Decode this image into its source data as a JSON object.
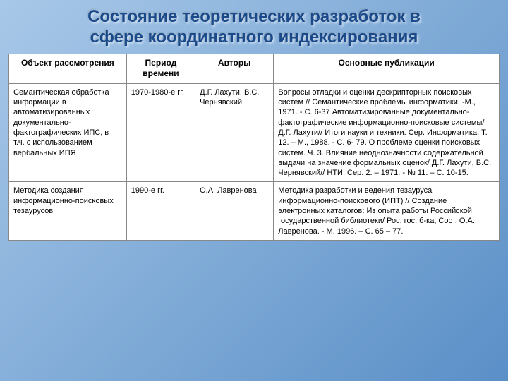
{
  "title_line1": "Состояние теоретических разработок в",
  "title_line2": "сфере координатного индексирования",
  "headers": {
    "object": "Объект рассмотрения",
    "period": "Период времени",
    "authors": "Авторы",
    "publications": "Основные публикации"
  },
  "rows": [
    {
      "object": "Семантическая обработка информации в автоматизированных документально-фактографических ИПС, в т.ч. с использованием вербальных ИПЯ",
      "period": "1970-1980-е гг.",
      "authors": "Д.Г. Лахути, В.С. Чернявский",
      "publications": "Вопросы отладки и оценки дескрипторных поисковых систем // Семантические проблемы информатики. -М., 1971. - С. 6-37 Автоматизированные документально-фактографические информационно-поисковые системы/ Д.Г. Лахути// Итоги науки и техники. Сер. Информатика. Т. 12. – М., 1988. - С. 6- 79. О проблеме оценки поисковых систем. Ч. 3. Влияние неоднозначности содержательной выдачи на значение формальных оценок/ Д.Г. Лахути, В.С. Чернявский// НТИ. Сер. 2. – 1971. - № 11. – С. 10-15."
    },
    {
      "object": "Методика создания информационно-поисковых тезаурусов",
      "period": "1990-е гг.",
      "authors": "О.А. Лавренова",
      "publications": "Методика разработки и ведения тезауруса информационно-поискового (ИПТ) // Создание электронных каталогов: Из опыта работы Российской государственной библиотеки/ Рос. гос. б-ка; Сост. О.А. Лавренова. - М, 1996. – С. 65 – 77."
    }
  ],
  "colors": {
    "title": "#1a4a8a",
    "bg_start": "#a8c8e8",
    "bg_end": "#5a8fc7",
    "border": "#888888"
  }
}
